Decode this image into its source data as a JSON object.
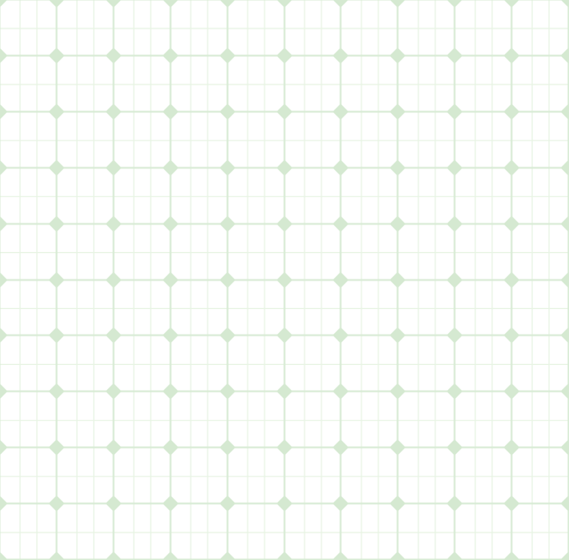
{
  "pattern": {
    "background_color": "#ffffff",
    "major_line_color": "#d8ebd5",
    "minor_line_color": "#e8f4e4",
    "node_color": "#d5e9d1",
    "node_shape": "diamond"
  }
}
